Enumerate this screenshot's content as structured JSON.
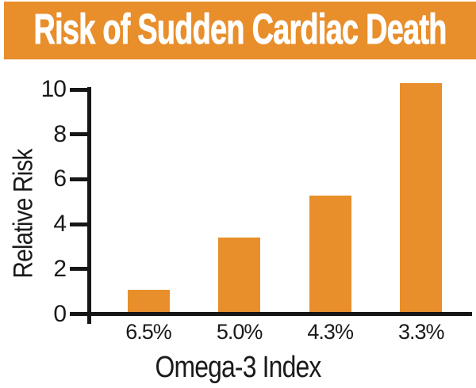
{
  "header": {
    "title": "Risk of Sudden Cardiac Death"
  },
  "colors": {
    "banner_bg": "#E88E2B",
    "banner_text": "#FFFFFF",
    "bar_fill": "#E88E2B",
    "axis_and_text": "#1A1A1A",
    "background": "#FFFFFF"
  },
  "chart_data": {
    "type": "bar",
    "title": "Risk of Sudden Cardiac Death",
    "categories": [
      "6.5%",
      "5.0%",
      "4.3%",
      "3.3%"
    ],
    "values": [
      1.0,
      3.3,
      5.2,
      10.2
    ],
    "xlabel": "Omega-3 Index",
    "ylabel": "Relative Risk",
    "ylim": [
      0,
      10
    ],
    "yticks": [
      0,
      2,
      4,
      6,
      8,
      10
    ],
    "bar_color": "#E88E2B",
    "grid": false,
    "legend": false
  }
}
